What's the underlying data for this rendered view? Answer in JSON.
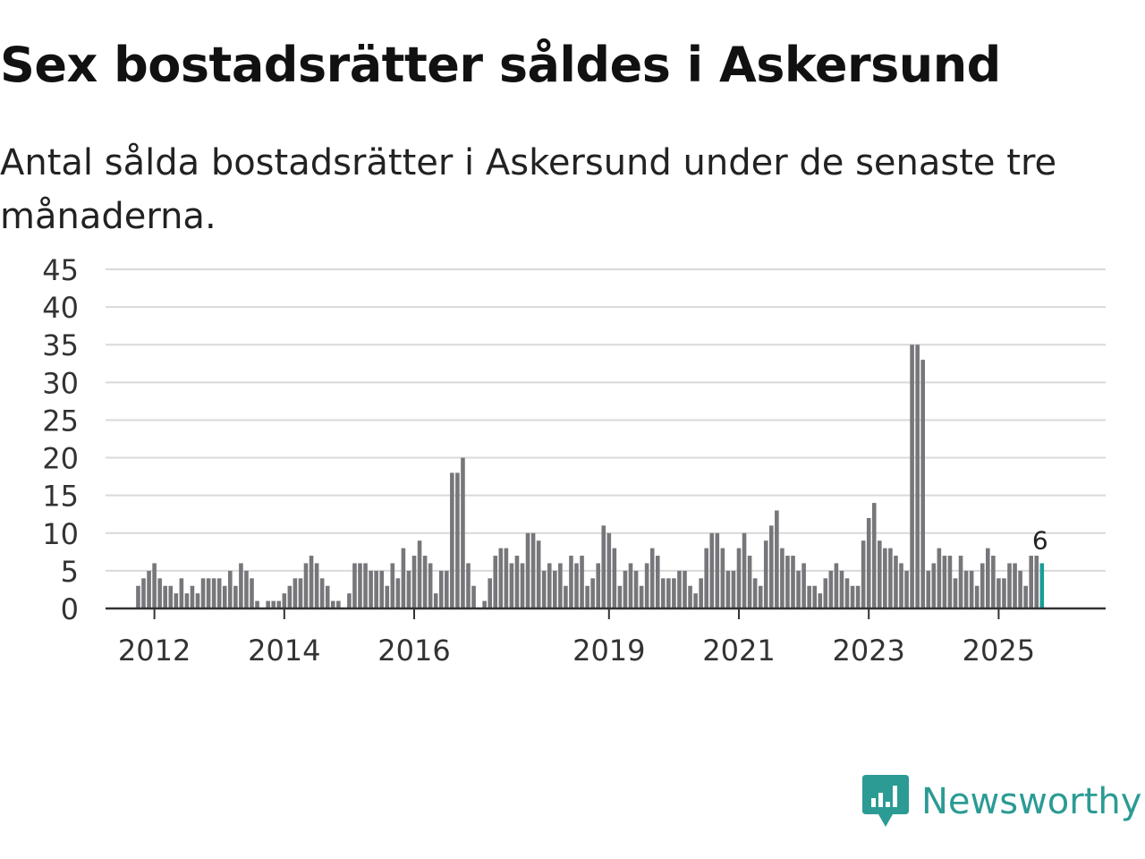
{
  "title": "Sex bostadsrätter såldes i Askersund",
  "subtitle": "Antal sålda bostadsrätter i Askersund under de senaste tre månaderna.",
  "brand": {
    "name": "Newsworthy",
    "icon": "newsworthy-logo-icon",
    "color": "#2b9b94"
  },
  "colors": {
    "bar": "#77767b",
    "highlight": "#1a9e96",
    "grid": "#d9d9d9",
    "axis": "#333333",
    "text": "#333333"
  },
  "chart_data": {
    "type": "bar",
    "title": "Sex bostadsrätter såldes i Askersund",
    "xlabel": "",
    "ylabel": "",
    "ylim": [
      0,
      45
    ],
    "yticks": [
      0,
      5,
      10,
      15,
      20,
      25,
      30,
      35,
      40,
      45
    ],
    "grid": true,
    "x_start": "2011-01",
    "xticks": [
      {
        "label": "2012",
        "month_index": 12
      },
      {
        "label": "2014",
        "month_index": 36
      },
      {
        "label": "2016",
        "month_index": 60
      },
      {
        "label": "2019",
        "month_index": 96
      },
      {
        "label": "2021",
        "month_index": 120
      },
      {
        "label": "2023",
        "month_index": 144
      },
      {
        "label": "2025",
        "month_index": 168
      }
    ],
    "values": [
      0,
      0,
      0,
      0,
      0,
      0,
      0,
      0,
      0,
      3,
      4,
      5,
      6,
      4,
      3,
      3,
      2,
      4,
      2,
      3,
      2,
      4,
      4,
      4,
      4,
      3,
      5,
      3,
      6,
      5,
      4,
      1,
      0,
      1,
      1,
      1,
      2,
      3,
      4,
      4,
      6,
      7,
      6,
      4,
      3,
      1,
      1,
      0,
      2,
      6,
      6,
      6,
      5,
      5,
      5,
      3,
      6,
      4,
      8,
      5,
      7,
      9,
      7,
      6,
      2,
      5,
      5,
      18,
      18,
      20,
      6,
      3,
      0,
      1,
      4,
      7,
      8,
      8,
      6,
      7,
      6,
      10,
      10,
      9,
      5,
      6,
      5,
      6,
      3,
      7,
      6,
      7,
      3,
      4,
      6,
      11,
      10,
      8,
      3,
      5,
      6,
      5,
      3,
      6,
      8,
      7,
      4,
      4,
      4,
      5,
      5,
      3,
      2,
      4,
      8,
      10,
      10,
      8,
      5,
      5,
      8,
      10,
      7,
      4,
      3,
      9,
      11,
      13,
      8,
      7,
      7,
      5,
      6,
      3,
      3,
      2,
      4,
      5,
      6,
      5,
      4,
      3,
      3,
      9,
      12,
      14,
      9,
      8,
      8,
      7,
      6,
      5,
      35,
      35,
      33,
      5,
      6,
      8,
      7,
      7,
      4,
      7,
      5,
      5,
      3,
      6,
      8,
      7,
      4,
      4,
      6,
      6,
      5,
      3,
      7,
      7,
      6
    ],
    "highlight_index": 176,
    "annotation": {
      "index": 176,
      "label": "6"
    }
  }
}
